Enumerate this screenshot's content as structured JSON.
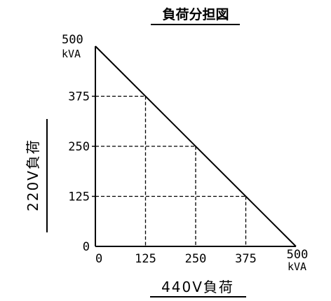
{
  "chart_data": {
    "type": "line",
    "title": "負荷分担図",
    "xlabel": "440V負荷",
    "ylabel": "220V負荷",
    "x_unit": "kVA",
    "y_unit": "kVA",
    "xlim": [
      0,
      500
    ],
    "ylim": [
      0,
      500
    ],
    "x_ticks": [
      "0",
      "125",
      "250",
      "375",
      "500"
    ],
    "y_ticks": [
      "0",
      "125",
      "250",
      "375",
      "500"
    ],
    "grid": false,
    "series": [
      {
        "x": [
          0,
          500
        ],
        "y": [
          500,
          0
        ]
      }
    ],
    "reference_points": [
      {
        "x": 125,
        "y": 375
      },
      {
        "x": 250,
        "y": 250
      },
      {
        "x": 375,
        "y": 125
      }
    ],
    "colors": {
      "line": "#000000",
      "axis": "#000000",
      "guide": "#000000"
    }
  }
}
